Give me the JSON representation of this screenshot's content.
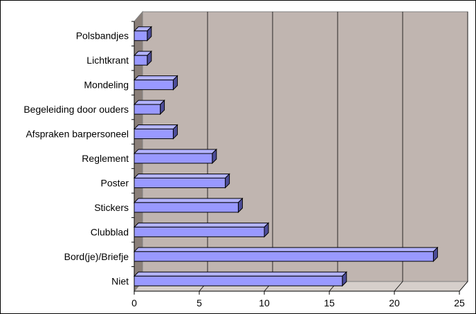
{
  "chart_data": {
    "type": "bar",
    "orientation": "horizontal",
    "style": "3d",
    "title": "",
    "xlabel": "",
    "ylabel": "",
    "categories": [
      "Polsbandjes",
      "Lichtkrant",
      "Mondeling",
      "Begeleiding door ouders",
      "Afspraken barpersoneel",
      "Reglement",
      "Poster",
      "Stickers",
      "Clubblad",
      "Bord(je)/Briefje",
      "Niet"
    ],
    "values": [
      1,
      1,
      3,
      2,
      3,
      6,
      7,
      8,
      10,
      23,
      16
    ],
    "xlim": [
      0,
      25
    ],
    "xticks": [
      0,
      5,
      10,
      15,
      20,
      25
    ],
    "grid": true,
    "legend": "none",
    "colors": {
      "bar_front": "#9999ff",
      "bar_top": "#b3b3ff",
      "bar_side": "#4d4d99",
      "plot_back": "#c0b5b0",
      "floor": "#d6cfcb",
      "left_wall": "#8a7f79",
      "grid": "#000000"
    }
  }
}
